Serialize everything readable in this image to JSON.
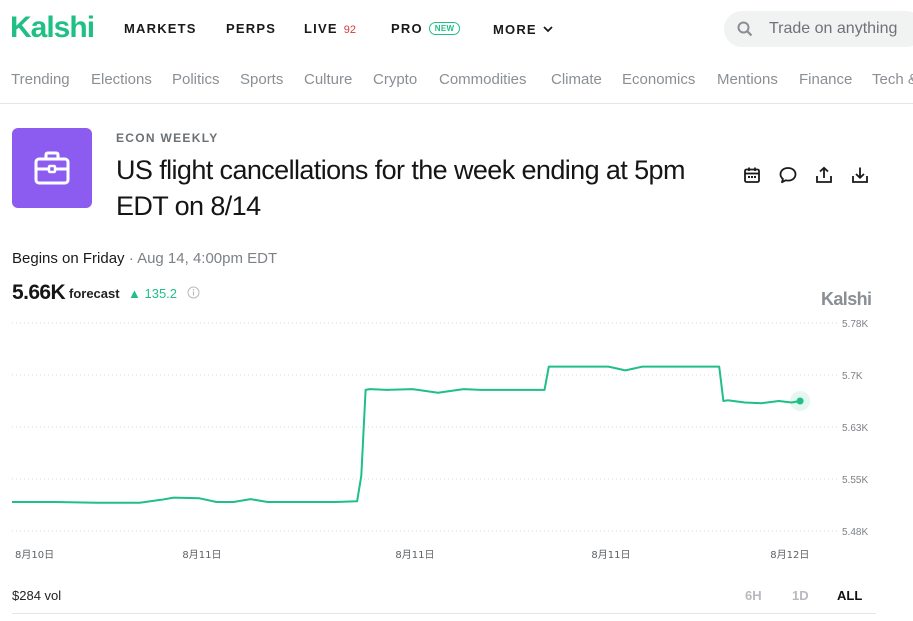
{
  "brand": {
    "logo": "Kalshi",
    "accent": "#1fbf85"
  },
  "nav": {
    "markets": "MARKETS",
    "perps": "PERPS",
    "live": "LIVE",
    "live_count": "92",
    "pro": "PRO",
    "pro_badge": "NEW",
    "more": "MORE"
  },
  "search": {
    "placeholder": "Trade on anything"
  },
  "categories": [
    "Trending",
    "Elections",
    "Politics",
    "Sports",
    "Culture",
    "Crypto",
    "Commodities",
    "Climate",
    "Economics",
    "Mentions",
    "Finance",
    "Tech &"
  ],
  "market": {
    "series": "ECON WEEKLY",
    "title": "US flight cancellations for the week ending at 5pm EDT on 8/14",
    "icon": "briefcase-icon",
    "icon_bg": "#8c5cf0",
    "begins_label": "Begins on Friday",
    "begins_date": "· Aug 14, 4:00pm EDT",
    "forecast_value": "5.66K",
    "forecast_label": "forecast",
    "forecast_change": "▲ 135.2",
    "watermark": "Kalshi"
  },
  "actions": [
    "calendar-icon",
    "comment-icon",
    "share-icon",
    "download-icon"
  ],
  "chart_data": {
    "type": "line",
    "y_ticks": [
      "5.78K",
      "5.7K",
      "5.63K",
      "5.55K",
      "5.48K"
    ],
    "y_tick_values": [
      5780,
      5700,
      5630,
      5550,
      5480
    ],
    "ylim": [
      5470,
      5790
    ],
    "x_ticks": [
      "8月10日",
      "8月11日",
      "8月11日",
      "8月11日",
      "8月12日"
    ],
    "x_tick_positions": [
      0.0,
      0.2,
      0.45,
      0.68,
      0.89
    ],
    "series": [
      {
        "color": "#1fbf85",
        "x": [
          0.0,
          0.05,
          0.1,
          0.15,
          0.175,
          0.19,
          0.22,
          0.24,
          0.26,
          0.28,
          0.3,
          0.32,
          0.34,
          0.38,
          0.405,
          0.41,
          0.415,
          0.42,
          0.44,
          0.47,
          0.5,
          0.53,
          0.55,
          0.6,
          0.625,
          0.63,
          0.66,
          0.7,
          0.72,
          0.74,
          0.77,
          0.8,
          0.83,
          0.835,
          0.84,
          0.86,
          0.88,
          0.9,
          0.915,
          0.925
        ],
        "y": [
          5519,
          5519,
          5518,
          5518,
          5522,
          5525,
          5524,
          5519,
          5519,
          5523,
          5519,
          5519,
          5519,
          5519,
          5520,
          5555,
          5680,
          5681,
          5680,
          5681,
          5676,
          5681,
          5680,
          5680,
          5680,
          5713,
          5713,
          5713,
          5707,
          5713,
          5713,
          5713,
          5713,
          5665,
          5666,
          5663,
          5662,
          5665,
          5663,
          5665
        ]
      }
    ]
  },
  "footer": {
    "volume": "$284 vol",
    "ranges": [
      "6H",
      "1D",
      "ALL"
    ],
    "active_range": "ALL"
  }
}
